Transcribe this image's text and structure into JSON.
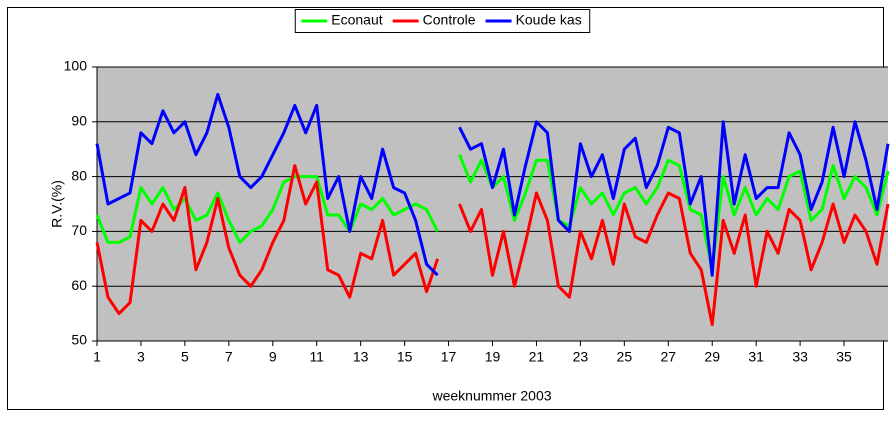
{
  "chart_data": {
    "type": "line",
    "ylabel": "R.V.(%)",
    "xlabel": "weeknummer 2003",
    "x": [
      1,
      1.5,
      2,
      2.5,
      3,
      3.5,
      4,
      4.5,
      5,
      5.5,
      6,
      6.5,
      7,
      7.5,
      8,
      8.5,
      9,
      9.5,
      10,
      10.5,
      11,
      11.5,
      12,
      12.5,
      13,
      13.5,
      14,
      14.5,
      15,
      15.5,
      16,
      16.5,
      17,
      17.5,
      18,
      18.5,
      19,
      19.5,
      20,
      20.5,
      21,
      21.5,
      22,
      22.5,
      23,
      23.5,
      24,
      24.5,
      25,
      25.5,
      26,
      26.5,
      27,
      27.5,
      28,
      28.5,
      29,
      29.5,
      30,
      30.5,
      31,
      31.5,
      32,
      32.5,
      33,
      33.5,
      34,
      34.5,
      35,
      35.5,
      36,
      36.5,
      37
    ],
    "series": [
      {
        "name": "Econaut",
        "color": "#00ff00",
        "values": [
          73,
          68,
          68,
          69,
          78,
          75,
          78,
          74,
          76,
          72,
          73,
          77,
          72,
          68,
          70,
          71,
          74,
          79,
          80,
          80,
          80,
          73,
          73,
          70,
          75,
          74,
          76,
          73,
          74,
          75,
          74,
          70,
          null,
          84,
          79,
          83,
          78,
          80,
          72,
          77,
          83,
          83,
          72,
          71,
          78,
          75,
          77,
          73,
          77,
          78,
          75,
          78,
          83,
          82,
          74,
          73,
          63,
          80,
          73,
          78,
          73,
          76,
          74,
          80,
          81,
          72,
          74,
          82,
          76,
          80,
          78,
          73,
          81
        ]
      },
      {
        "name": "Controle",
        "color": "#ff0000",
        "values": [
          68,
          58,
          55,
          57,
          72,
          70,
          75,
          72,
          78,
          63,
          68,
          76,
          67,
          62,
          60,
          63,
          68,
          72,
          82,
          75,
          79,
          63,
          62,
          58,
          66,
          65,
          72,
          62,
          64,
          66,
          59,
          65,
          null,
          75,
          70,
          74,
          62,
          70,
          60,
          68,
          77,
          72,
          60,
          58,
          70,
          65,
          72,
          64,
          75,
          69,
          68,
          73,
          77,
          76,
          66,
          63,
          53,
          72,
          66,
          73,
          60,
          70,
          66,
          74,
          72,
          63,
          68,
          75,
          68,
          73,
          70,
          64,
          75
        ]
      },
      {
        "name": "Koude kas",
        "color": "#0000ff",
        "values": [
          86,
          75,
          76,
          77,
          88,
          86,
          92,
          88,
          90,
          84,
          88,
          95,
          89,
          80,
          78,
          80,
          84,
          88,
          93,
          88,
          93,
          76,
          80,
          70,
          80,
          76,
          85,
          78,
          77,
          72,
          64,
          62,
          null,
          89,
          85,
          86,
          78,
          85,
          73,
          82,
          90,
          88,
          72,
          70,
          86,
          80,
          84,
          76,
          85,
          87,
          78,
          82,
          89,
          88,
          75,
          80,
          62,
          90,
          75,
          84,
          76,
          78,
          78,
          88,
          84,
          74,
          79,
          89,
          80,
          90,
          83,
          74,
          86
        ]
      }
    ],
    "xlim": [
      1,
      37
    ],
    "xticks": [
      1,
      3,
      5,
      7,
      9,
      11,
      13,
      15,
      17,
      19,
      21,
      23,
      25,
      27,
      29,
      31,
      33,
      35
    ],
    "ylim": [
      50,
      100
    ],
    "yticks": [
      50,
      60,
      70,
      80,
      90,
      100
    ],
    "grid": true,
    "legend": "top"
  }
}
